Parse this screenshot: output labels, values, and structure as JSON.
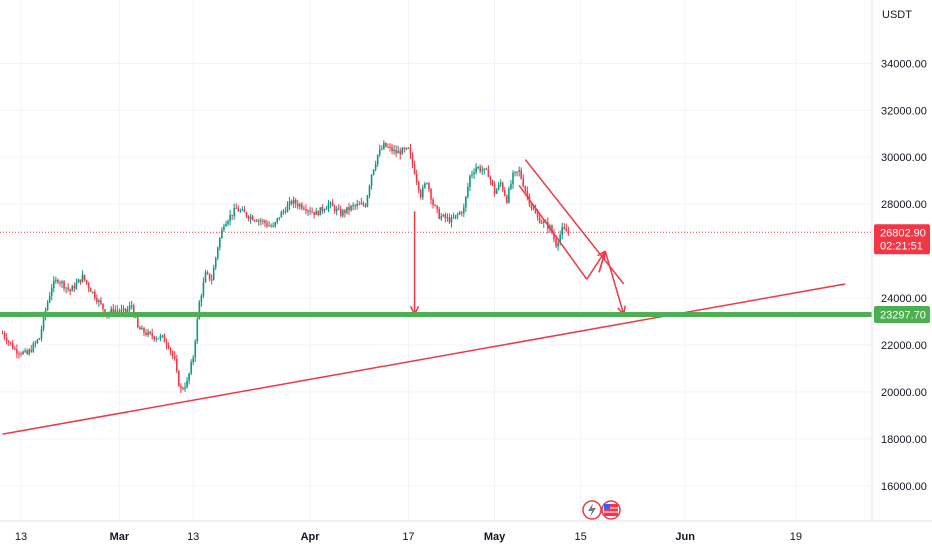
{
  "chart_data": {
    "type": "candlestick",
    "currency_label": "USDT",
    "ylim": [
      14500,
      36700
    ],
    "y_ticks": [
      {
        "value": 16000,
        "label": "16000.00"
      },
      {
        "value": 18000,
        "label": "18000.00"
      },
      {
        "value": 20000,
        "label": "20000.00"
      },
      {
        "value": 22000,
        "label": "22000.00"
      },
      {
        "value": 24000,
        "label": "24000.00"
      },
      {
        "value": 28000,
        "label": "28000.00"
      },
      {
        "value": 30000,
        "label": "30000.00"
      },
      {
        "value": 32000,
        "label": "32000.00"
      },
      {
        "value": 34000,
        "label": "34000.00"
      }
    ],
    "x_ticks": [
      {
        "label": "13",
        "day": 0,
        "bold": false
      },
      {
        "label": "Mar",
        "day": 16,
        "bold": true
      },
      {
        "label": "13",
        "day": 28,
        "bold": false
      },
      {
        "label": "Apr",
        "day": 47,
        "bold": true
      },
      {
        "label": "17",
        "day": 63,
        "bold": false
      },
      {
        "label": "May",
        "day": 77,
        "bold": true
      },
      {
        "label": "15",
        "day": 91,
        "bold": false
      },
      {
        "label": "Jun",
        "day": 108,
        "bold": true
      },
      {
        "label": "19",
        "day": 126,
        "bold": false
      }
    ],
    "grid": true,
    "current_price": {
      "value": 26802.9,
      "label": "26802.90",
      "countdown": "02:21:51",
      "color": "#f23645"
    },
    "support_level": {
      "value": 23297.7,
      "label": "23297.70",
      "color": "#4caf50"
    },
    "price_path": [
      {
        "day": -3,
        "price": 22500
      },
      {
        "day": -1,
        "price": 21800
      },
      {
        "day": 1,
        "price": 21600
      },
      {
        "day": 3,
        "price": 22300
      },
      {
        "day": 4,
        "price": 23500
      },
      {
        "day": 5,
        "price": 24500
      },
      {
        "day": 6,
        "price": 24800
      },
      {
        "day": 8,
        "price": 24300
      },
      {
        "day": 10,
        "price": 24900
      },
      {
        "day": 12,
        "price": 24100
      },
      {
        "day": 14,
        "price": 23300
      },
      {
        "day": 15,
        "price": 23500
      },
      {
        "day": 17,
        "price": 23400
      },
      {
        "day": 18,
        "price": 23700
      },
      {
        "day": 19,
        "price": 22700
      },
      {
        "day": 21,
        "price": 22400
      },
      {
        "day": 23,
        "price": 22300
      },
      {
        "day": 24,
        "price": 22000
      },
      {
        "day": 25,
        "price": 21300
      },
      {
        "day": 25.5,
        "price": 20500
      },
      {
        "day": 26,
        "price": 20100
      },
      {
        "day": 27,
        "price": 20400
      },
      {
        "day": 28,
        "price": 21500
      },
      {
        "day": 29,
        "price": 23800
      },
      {
        "day": 30,
        "price": 25000
      },
      {
        "day": 31,
        "price": 24800
      },
      {
        "day": 32,
        "price": 26200
      },
      {
        "day": 33,
        "price": 27200
      },
      {
        "day": 35,
        "price": 27800
      },
      {
        "day": 37,
        "price": 27500
      },
      {
        "day": 39,
        "price": 27300
      },
      {
        "day": 41,
        "price": 27000
      },
      {
        "day": 42,
        "price": 27500
      },
      {
        "day": 44,
        "price": 28100
      },
      {
        "day": 46,
        "price": 27900
      },
      {
        "day": 48,
        "price": 27600
      },
      {
        "day": 50,
        "price": 28000
      },
      {
        "day": 52,
        "price": 27600
      },
      {
        "day": 54,
        "price": 27900
      },
      {
        "day": 56,
        "price": 28000
      },
      {
        "day": 57,
        "price": 29300
      },
      {
        "day": 58,
        "price": 30100
      },
      {
        "day": 59,
        "price": 30500
      },
      {
        "day": 61,
        "price": 30200
      },
      {
        "day": 63,
        "price": 30300
      },
      {
        "day": 64,
        "price": 29400
      },
      {
        "day": 65,
        "price": 28400
      },
      {
        "day": 66,
        "price": 29000
      },
      {
        "day": 67,
        "price": 28000
      },
      {
        "day": 68,
        "price": 27500
      },
      {
        "day": 70,
        "price": 27300
      },
      {
        "day": 72,
        "price": 27800
      },
      {
        "day": 73,
        "price": 29200
      },
      {
        "day": 74,
        "price": 29600
      },
      {
        "day": 76,
        "price": 29300
      },
      {
        "day": 77,
        "price": 28500
      },
      {
        "day": 78,
        "price": 28900
      },
      {
        "day": 79,
        "price": 28200
      },
      {
        "day": 80,
        "price": 29200
      },
      {
        "day": 81,
        "price": 29400
      },
      {
        "day": 82,
        "price": 28600
      },
      {
        "day": 83,
        "price": 27900
      },
      {
        "day": 84,
        "price": 27400
      },
      {
        "day": 85,
        "price": 27200
      },
      {
        "day": 86,
        "price": 27000
      },
      {
        "day": 87,
        "price": 26300
      },
      {
        "day": 88,
        "price": 26900
      },
      {
        "day": 89,
        "price": 26803
      }
    ],
    "drawings": {
      "color": "#f23645",
      "long_trendline": [
        {
          "day": -3,
          "price": 18200
        },
        {
          "day": 134,
          "price": 24600
        }
      ],
      "channel_upper": [
        {
          "day": 82,
          "price": 29900
        },
        {
          "day": 98,
          "price": 24600
        }
      ],
      "channel_lower": [
        {
          "day": 81,
          "price": 28800
        },
        {
          "day": 92,
          "price": 24800
        }
      ],
      "target_arrow": {
        "day": 64,
        "from": 27700,
        "to": 23300
      },
      "zigzag": [
        {
          "day": 92,
          "price": 24800
        },
        {
          "day": 95,
          "price": 26000
        },
        {
          "day": 94,
          "price": 25100
        },
        {
          "day": 95,
          "price": 26000
        },
        {
          "day": 98,
          "price": 23300
        }
      ]
    }
  }
}
